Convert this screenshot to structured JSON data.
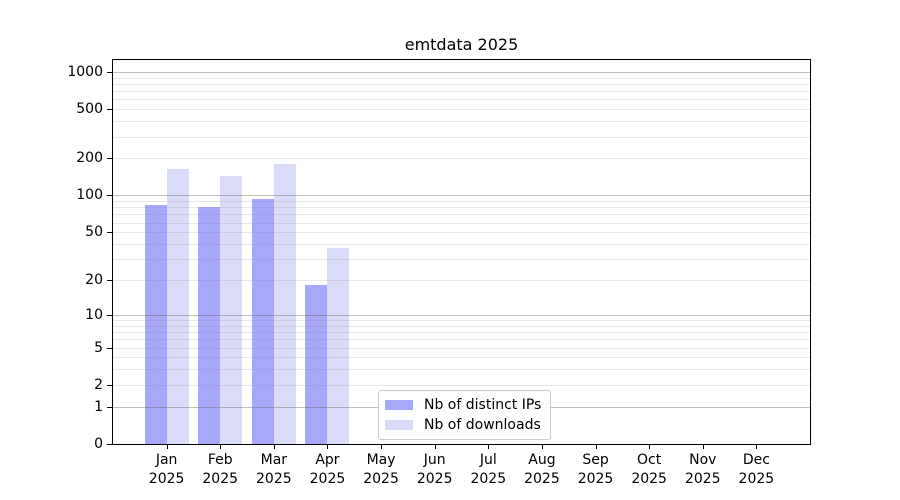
{
  "chart_data": {
    "type": "bar",
    "title": "emtdata 2025",
    "x_categories": [
      "Jan",
      "Feb",
      "Mar",
      "Apr",
      "May",
      "Jun",
      "Jul",
      "Aug",
      "Sep",
      "Oct",
      "Nov",
      "Dec"
    ],
    "x_year_label": "2025",
    "y_ticks": [
      0,
      1,
      2,
      5,
      10,
      20,
      50,
      100,
      200,
      500,
      1000
    ],
    "y_scale": "log10(value+1)",
    "y_range": [
      0,
      1300
    ],
    "grid": "major and minor horizontal lines drawn over bars",
    "legend_position": "inside-bottom-center",
    "series": [
      {
        "name": "Nb of distinct IPs",
        "color": "#a8a8fa",
        "values": [
          83,
          80,
          93,
          18,
          null,
          null,
          null,
          null,
          null,
          null,
          null,
          null
        ]
      },
      {
        "name": "Nb of downloads",
        "color": "#dbdbfa",
        "values": [
          165,
          145,
          180,
          37,
          null,
          null,
          null,
          null,
          null,
          null,
          null,
          null
        ]
      }
    ],
    "colors": {
      "background": "#ffffff",
      "axis": "#000000",
      "text": "#000000",
      "grid_major": "rgba(96,96,96,0.40)",
      "grid_minor": "rgba(128,128,128,0.18)",
      "legend_border": "#cccccc"
    }
  }
}
